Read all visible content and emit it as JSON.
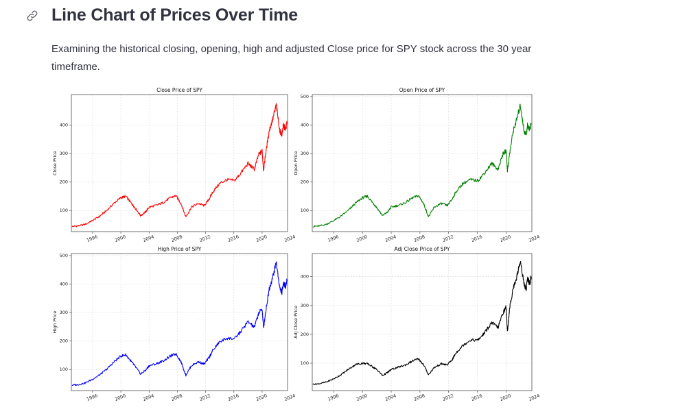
{
  "header": {
    "title": "Line Chart of Prices Over Time",
    "link_icon": "link-icon",
    "description": "Examining the historical closing, opening, high and adjusted Close price for SPY stock across the 30 year timeframe."
  },
  "chart_data": [
    {
      "type": "line",
      "title": "Close Price of SPY",
      "xlabel": "",
      "ylabel": "Close Price",
      "color": "#ff0000",
      "xlim": [
        1993.0,
        2023.6
      ],
      "ylim": [
        26,
        507
      ],
      "xticks": [
        "1996",
        "2000",
        "2004",
        "2008",
        "2012",
        "2016",
        "2020",
        "2024"
      ],
      "yticks": [
        100,
        200,
        300,
        400
      ],
      "grid": true,
      "series": [
        {
          "x": [
            1993.1,
            1994.0,
            1995.0,
            1996.0,
            1997.0,
            1998.0,
            1999.0,
            2000.0,
            2000.7,
            2001.5,
            2002.0,
            2002.8,
            2003.5,
            2004.0,
            2005.0,
            2006.0,
            2007.0,
            2007.8,
            2008.5,
            2009.2,
            2010.0,
            2011.0,
            2011.8,
            2012.5,
            2013.0,
            2014.0,
            2015.0,
            2016.1,
            2017.0,
            2018.0,
            2018.9,
            2019.5,
            2020.0,
            2020.2,
            2020.5,
            2021.0,
            2021.5,
            2022.0,
            2022.5,
            2022.8,
            2023.0,
            2023.3,
            2023.5
          ],
          "y": [
            44,
            46,
            52,
            65,
            80,
            100,
            125,
            145,
            150,
            125,
            110,
            82,
            95,
            112,
            118,
            128,
            145,
            152,
            125,
            78,
            112,
            125,
            117,
            140,
            165,
            195,
            208,
            205,
            232,
            265,
            245,
            295,
            310,
            240,
            300,
            380,
            420,
            470,
            380,
            365,
            400,
            385,
            405
          ]
        }
      ]
    },
    {
      "type": "line",
      "title": "Open Price of SPY",
      "xlabel": "",
      "ylabel": "Open Price",
      "color": "#008000",
      "xlim": [
        1993.0,
        2023.6
      ],
      "ylim": [
        26,
        507
      ],
      "xticks": [
        "1996",
        "2000",
        "2004",
        "2008",
        "2012",
        "2016",
        "2020",
        "2024"
      ],
      "yticks": [
        100,
        200,
        300,
        400,
        500
      ],
      "grid": true,
      "series": [
        {
          "x": [
            1993.1,
            1994.0,
            1995.0,
            1996.0,
            1997.0,
            1998.0,
            1999.0,
            2000.0,
            2000.7,
            2001.5,
            2002.0,
            2002.8,
            2003.5,
            2004.0,
            2005.0,
            2006.0,
            2007.0,
            2007.8,
            2008.5,
            2009.2,
            2010.0,
            2011.0,
            2011.8,
            2012.5,
            2013.0,
            2014.0,
            2015.0,
            2016.1,
            2017.0,
            2018.0,
            2018.9,
            2019.5,
            2020.0,
            2020.2,
            2020.5,
            2021.0,
            2021.5,
            2022.0,
            2022.5,
            2022.8,
            2023.0,
            2023.3,
            2023.5
          ],
          "y": [
            44,
            46,
            52,
            65,
            80,
            100,
            125,
            145,
            150,
            125,
            110,
            82,
            95,
            112,
            118,
            128,
            145,
            152,
            125,
            78,
            112,
            125,
            117,
            140,
            165,
            195,
            208,
            205,
            232,
            265,
            245,
            295,
            310,
            240,
            300,
            380,
            420,
            470,
            380,
            365,
            400,
            385,
            405
          ]
        }
      ]
    },
    {
      "type": "line",
      "title": "High Price of SPY",
      "xlabel": "",
      "ylabel": "High Price",
      "color": "#0000ff",
      "xlim": [
        1993.0,
        2023.6
      ],
      "ylim": [
        26,
        507
      ],
      "xticks": [
        "1996",
        "2000",
        "2004",
        "2008",
        "2012",
        "2016",
        "2020",
        "2024"
      ],
      "yticks": [
        100,
        200,
        300,
        400,
        500
      ],
      "grid": true,
      "series": [
        {
          "x": [
            1993.1,
            1994.0,
            1995.0,
            1996.0,
            1997.0,
            1998.0,
            1999.0,
            2000.0,
            2000.7,
            2001.5,
            2002.0,
            2002.8,
            2003.5,
            2004.0,
            2005.0,
            2006.0,
            2007.0,
            2007.8,
            2008.5,
            2009.2,
            2010.0,
            2011.0,
            2011.8,
            2012.5,
            2013.0,
            2014.0,
            2015.0,
            2016.1,
            2017.0,
            2018.0,
            2018.9,
            2019.5,
            2020.0,
            2020.2,
            2020.5,
            2021.0,
            2021.5,
            2022.0,
            2022.5,
            2022.8,
            2023.0,
            2023.3,
            2023.5
          ],
          "y": [
            45,
            47,
            53,
            66,
            81,
            101,
            126,
            147,
            152,
            127,
            112,
            84,
            97,
            113,
            120,
            130,
            147,
            155,
            128,
            80,
            114,
            127,
            119,
            142,
            167,
            197,
            210,
            208,
            234,
            268,
            248,
            297,
            313,
            245,
            303,
            383,
            424,
            476,
            386,
            370,
            405,
            390,
            410
          ]
        }
      ]
    },
    {
      "type": "line",
      "title": "Adj Close Price of SPY",
      "xlabel": "",
      "ylabel": "Adj Close Price",
      "color": "#000000",
      "xlim": [
        1993.0,
        2023.6
      ],
      "ylim": [
        5,
        480
      ],
      "xticks": [
        "1996",
        "2000",
        "2004",
        "2008",
        "2012",
        "2016",
        "2020",
        "2024"
      ],
      "yticks": [
        100,
        200,
        300,
        400
      ],
      "grid": true,
      "series": [
        {
          "x": [
            1993.1,
            1994.0,
            1995.0,
            1996.0,
            1997.0,
            1998.0,
            1999.0,
            2000.0,
            2000.7,
            2001.5,
            2002.0,
            2002.8,
            2003.5,
            2004.0,
            2005.0,
            2006.0,
            2007.0,
            2007.8,
            2008.5,
            2009.2,
            2010.0,
            2011.0,
            2011.8,
            2012.5,
            2013.0,
            2014.0,
            2015.0,
            2016.1,
            2017.0,
            2018.0,
            2018.9,
            2019.5,
            2020.0,
            2020.2,
            2020.5,
            2021.0,
            2021.5,
            2022.0,
            2022.5,
            2022.8,
            2023.0,
            2023.3,
            2023.5
          ],
          "y": [
            27,
            29,
            35,
            46,
            60,
            78,
            95,
            100,
            98,
            86,
            78,
            57,
            68,
            78,
            86,
            94,
            108,
            115,
            95,
            60,
            85,
            98,
            94,
            112,
            135,
            162,
            180,
            180,
            205,
            240,
            224,
            270,
            295,
            210,
            290,
            360,
            400,
            455,
            375,
            355,
            395,
            375,
            400
          ]
        }
      ]
    }
  ]
}
